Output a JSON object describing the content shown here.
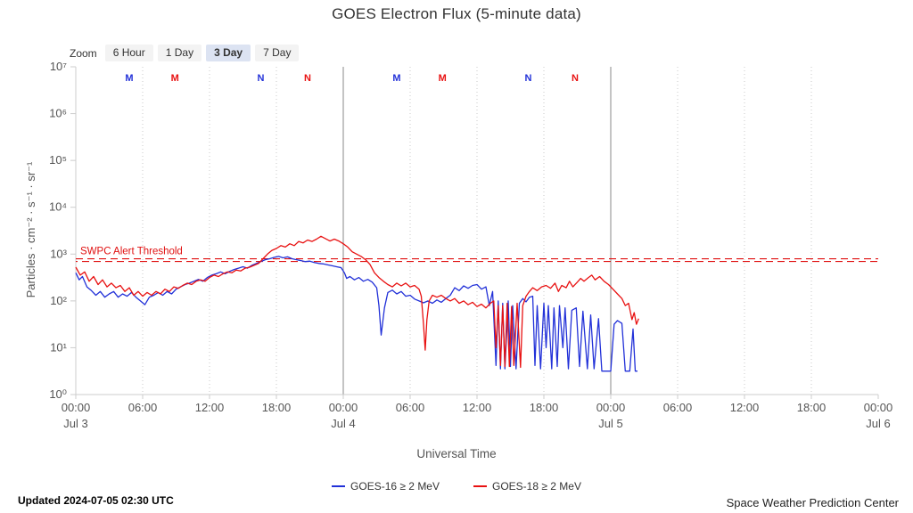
{
  "title": "GOES Electron Flux (5-minute data)",
  "zoom": {
    "label": "Zoom",
    "options": [
      {
        "label": "6 Hour",
        "selected": false
      },
      {
        "label": "1 Day",
        "selected": false
      },
      {
        "label": "3 Day",
        "selected": true
      },
      {
        "label": "7 Day",
        "selected": false
      }
    ]
  },
  "y_axis": {
    "title": "Particles · cm⁻² · s⁻¹ · sr⁻¹",
    "tick_labels": [
      "10⁰",
      "10¹",
      "10²",
      "10³",
      "10⁴",
      "10⁵",
      "10⁶",
      "10⁷"
    ]
  },
  "x_axis": {
    "title": "Universal Time",
    "time_labels": [
      "00:00",
      "06:00",
      "12:00",
      "18:00"
    ],
    "days": [
      {
        "hour": 0,
        "label": "Jul 3"
      },
      {
        "hour": 24,
        "label": "Jul 4"
      },
      {
        "hour": 48,
        "label": "Jul 5"
      },
      {
        "hour": 72,
        "label": "Jul 6"
      }
    ]
  },
  "threshold": {
    "label": "SWPC Alert Threshold",
    "color": "#e01010"
  },
  "markers": [
    {
      "label": "M",
      "satellite": "GOES-16",
      "color": "#2231d8",
      "hour": 4.8
    },
    {
      "label": "M",
      "satellite": "GOES-18",
      "color": "#e81111",
      "hour": 8.9
    },
    {
      "label": "N",
      "satellite": "GOES-16",
      "color": "#2231d8",
      "hour": 16.6
    },
    {
      "label": "N",
      "satellite": "GOES-18",
      "color": "#e81111",
      "hour": 20.8
    },
    {
      "label": "M",
      "satellite": "GOES-16",
      "color": "#2231d8",
      "hour": 28.8
    },
    {
      "label": "M",
      "satellite": "GOES-18",
      "color": "#e81111",
      "hour": 32.9
    },
    {
      "label": "N",
      "satellite": "GOES-16",
      "color": "#2231d8",
      "hour": 40.6
    },
    {
      "label": "N",
      "satellite": "GOES-18",
      "color": "#e81111",
      "hour": 44.8
    }
  ],
  "legend": [
    {
      "label": "GOES-16 ≥ 2 MeV",
      "color": "#2231d8"
    },
    {
      "label": "GOES-18 ≥ 2 MeV",
      "color": "#e81111"
    }
  ],
  "footer": {
    "updated": "Updated 2024-07-05 02:30 UTC",
    "source": "Space Weather Prediction Center"
  },
  "chart_data": {
    "type": "line",
    "title": "GOES Electron Flux (5-minute data)",
    "xlabel": "Universal Time",
    "ylabel": "Particles · cm⁻² · s⁻¹ · sr⁻¹",
    "x_unit": "hours since 2024-07-03 00:00 UTC",
    "y_unit": "log10 of particle flux",
    "x_range_hours": [
      0,
      72
    ],
    "y_log10_range": [
      0,
      7
    ],
    "grid": "vertical dotted every 6h, solid at day boundaries",
    "legend_position": "bottom-center",
    "threshold_log": 2.9,
    "series": [
      {
        "name": "GOES-16 ≥ 2 MeV",
        "color": "#2231d8",
        "points": [
          [
            0,
            2.6
          ],
          [
            0.3,
            2.45
          ],
          [
            0.6,
            2.52
          ],
          [
            1,
            2.3
          ],
          [
            1.4,
            2.22
          ],
          [
            1.8,
            2.12
          ],
          [
            2.2,
            2.2
          ],
          [
            2.6,
            2.08
          ],
          [
            3,
            2.15
          ],
          [
            3.4,
            2.2
          ],
          [
            3.8,
            2.08
          ],
          [
            4.2,
            2.15
          ],
          [
            4.6,
            2.1
          ],
          [
            5,
            2.18
          ],
          [
            5.4,
            2.08
          ],
          [
            5.8,
            2.0
          ],
          [
            6.2,
            1.92
          ],
          [
            6.6,
            2.08
          ],
          [
            7,
            2.12
          ],
          [
            7.4,
            2.18
          ],
          [
            7.8,
            2.12
          ],
          [
            8.2,
            2.2
          ],
          [
            8.6,
            2.15
          ],
          [
            9,
            2.25
          ],
          [
            9.4,
            2.3
          ],
          [
            9.8,
            2.35
          ],
          [
            10.2,
            2.38
          ],
          [
            10.6,
            2.42
          ],
          [
            11,
            2.46
          ],
          [
            11.4,
            2.42
          ],
          [
            11.8,
            2.5
          ],
          [
            12.2,
            2.55
          ],
          [
            12.6,
            2.58
          ],
          [
            13,
            2.62
          ],
          [
            13.4,
            2.58
          ],
          [
            13.8,
            2.63
          ],
          [
            14.2,
            2.67
          ],
          [
            14.6,
            2.7
          ],
          [
            15,
            2.73
          ],
          [
            15.4,
            2.7
          ],
          [
            15.8,
            2.76
          ],
          [
            16.2,
            2.8
          ],
          [
            16.6,
            2.84
          ],
          [
            17,
            2.88
          ],
          [
            17.4,
            2.9
          ],
          [
            17.8,
            2.93
          ],
          [
            18.2,
            2.95
          ],
          [
            18.6,
            2.92
          ],
          [
            19,
            2.94
          ],
          [
            19.4,
            2.9
          ],
          [
            19.8,
            2.88
          ],
          [
            20.2,
            2.86
          ],
          [
            20.6,
            2.84
          ],
          [
            21,
            2.85
          ],
          [
            21.4,
            2.82
          ],
          [
            21.8,
            2.8
          ],
          [
            22.2,
            2.79
          ],
          [
            22.6,
            2.77
          ],
          [
            23,
            2.75
          ],
          [
            23.4,
            2.73
          ],
          [
            23.8,
            2.71
          ],
          [
            24.1,
            2.6
          ],
          [
            24.3,
            2.48
          ],
          [
            24.6,
            2.52
          ],
          [
            25,
            2.45
          ],
          [
            25.4,
            2.5
          ],
          [
            25.8,
            2.42
          ],
          [
            26.2,
            2.46
          ],
          [
            26.6,
            2.4
          ],
          [
            27,
            2.28
          ],
          [
            27.2,
            1.9
          ],
          [
            27.4,
            1.27
          ],
          [
            27.7,
            1.85
          ],
          [
            28,
            2.18
          ],
          [
            28.4,
            2.23
          ],
          [
            28.8,
            2.15
          ],
          [
            29.2,
            2.2
          ],
          [
            29.6,
            2.1
          ],
          [
            30,
            2.12
          ],
          [
            30.4,
            2.04
          ],
          [
            30.8,
            2.0
          ],
          [
            31.2,
            1.96
          ],
          [
            31.6,
            2.0
          ],
          [
            32,
            1.95
          ],
          [
            32.4,
            2.02
          ],
          [
            32.8,
            1.97
          ],
          [
            33.2,
            2.05
          ],
          [
            33.6,
            2.12
          ],
          [
            34,
            2.28
          ],
          [
            34.4,
            2.22
          ],
          [
            34.8,
            2.32
          ],
          [
            35.2,
            2.27
          ],
          [
            35.6,
            2.33
          ],
          [
            36,
            2.35
          ],
          [
            36.4,
            2.25
          ],
          [
            36.8,
            2.3
          ],
          [
            37.1,
            1.9
          ],
          [
            37.4,
            2.2
          ],
          [
            37.7,
            0.62
          ],
          [
            37.9,
            2.0
          ],
          [
            38.1,
            0.55
          ],
          [
            38.3,
            1.95
          ],
          [
            38.5,
            0.55
          ],
          [
            38.8,
            2.0
          ],
          [
            39,
            0.6
          ],
          [
            39.2,
            1.9
          ],
          [
            39.5,
            0.55
          ],
          [
            39.8,
            1.95
          ],
          [
            40.1,
            2.05
          ],
          [
            40.4,
            1.98
          ],
          [
            40.7,
            2.08
          ],
          [
            41,
            2.1
          ],
          [
            41.2,
            0.62
          ],
          [
            41.4,
            1.9
          ],
          [
            41.7,
            0.55
          ],
          [
            42,
            1.95
          ],
          [
            42.2,
            1.0
          ],
          [
            42.4,
            1.9
          ],
          [
            42.7,
            0.55
          ],
          [
            42.9,
            1.85
          ],
          [
            43.2,
            0.6
          ],
          [
            43.4,
            1.9
          ],
          [
            43.7,
            1.0
          ],
          [
            43.9,
            1.85
          ],
          [
            44.2,
            0.55
          ],
          [
            44.5,
            1.8
          ],
          [
            44.9,
            1.85
          ],
          [
            45.2,
            0.6
          ],
          [
            45.5,
            1.78
          ],
          [
            45.9,
            0.55
          ],
          [
            46.2,
            1.7
          ],
          [
            46.5,
            0.55
          ],
          [
            46.9,
            1.62
          ],
          [
            47.2,
            0.5
          ],
          [
            47.6,
            0.5
          ],
          [
            48,
            0.5
          ],
          [
            48.3,
            1.5
          ],
          [
            48.6,
            1.58
          ],
          [
            49,
            1.52
          ],
          [
            49.3,
            0.5
          ],
          [
            49.7,
            0.5
          ],
          [
            50,
            1.4
          ],
          [
            50.2,
            0.5
          ],
          [
            50.4,
            0.5
          ]
        ]
      },
      {
        "name": "GOES-18 ≥ 2 MeV",
        "color": "#e81111",
        "points": [
          [
            0,
            2.72
          ],
          [
            0.4,
            2.55
          ],
          [
            0.8,
            2.62
          ],
          [
            1.2,
            2.42
          ],
          [
            1.6,
            2.52
          ],
          [
            2,
            2.35
          ],
          [
            2.4,
            2.45
          ],
          [
            2.8,
            2.3
          ],
          [
            3.2,
            2.38
          ],
          [
            3.6,
            2.28
          ],
          [
            4,
            2.33
          ],
          [
            4.4,
            2.2
          ],
          [
            4.8,
            2.28
          ],
          [
            5.2,
            2.12
          ],
          [
            5.6,
            2.2
          ],
          [
            6,
            2.1
          ],
          [
            6.4,
            2.18
          ],
          [
            6.8,
            2.12
          ],
          [
            7.2,
            2.2
          ],
          [
            7.6,
            2.15
          ],
          [
            8,
            2.25
          ],
          [
            8.4,
            2.2
          ],
          [
            8.8,
            2.3
          ],
          [
            9.2,
            2.27
          ],
          [
            9.6,
            2.33
          ],
          [
            10,
            2.38
          ],
          [
            10.4,
            2.35
          ],
          [
            10.8,
            2.42
          ],
          [
            11.2,
            2.45
          ],
          [
            11.6,
            2.42
          ],
          [
            12,
            2.5
          ],
          [
            12.4,
            2.55
          ],
          [
            12.8,
            2.52
          ],
          [
            13.2,
            2.58
          ],
          [
            13.6,
            2.62
          ],
          [
            14,
            2.6
          ],
          [
            14.4,
            2.66
          ],
          [
            14.8,
            2.64
          ],
          [
            15.2,
            2.7
          ],
          [
            15.6,
            2.72
          ],
          [
            16,
            2.76
          ],
          [
            16.4,
            2.8
          ],
          [
            16.8,
            2.9
          ],
          [
            17.2,
            3.0
          ],
          [
            17.6,
            3.08
          ],
          [
            18,
            3.12
          ],
          [
            18.4,
            3.18
          ],
          [
            18.8,
            3.15
          ],
          [
            19.2,
            3.22
          ],
          [
            19.6,
            3.18
          ],
          [
            20,
            3.27
          ],
          [
            20.4,
            3.24
          ],
          [
            20.8,
            3.3
          ],
          [
            21.2,
            3.27
          ],
          [
            21.6,
            3.32
          ],
          [
            22,
            3.38
          ],
          [
            22.4,
            3.33
          ],
          [
            22.8,
            3.28
          ],
          [
            23.2,
            3.32
          ],
          [
            23.6,
            3.28
          ],
          [
            24,
            3.22
          ],
          [
            24.4,
            3.15
          ],
          [
            24.8,
            3.05
          ],
          [
            25.2,
            3.0
          ],
          [
            25.6,
            2.95
          ],
          [
            26,
            2.88
          ],
          [
            26.4,
            2.78
          ],
          [
            26.8,
            2.6
          ],
          [
            27.2,
            2.5
          ],
          [
            27.6,
            2.42
          ],
          [
            28,
            2.35
          ],
          [
            28.4,
            2.3
          ],
          [
            28.8,
            2.38
          ],
          [
            29.2,
            2.32
          ],
          [
            29.6,
            2.38
          ],
          [
            30,
            2.3
          ],
          [
            30.4,
            2.33
          ],
          [
            30.8,
            2.25
          ],
          [
            31,
            2.1
          ],
          [
            31.2,
            1.5
          ],
          [
            31.35,
            0.95
          ],
          [
            31.5,
            1.6
          ],
          [
            31.7,
            2.0
          ],
          [
            32,
            2.12
          ],
          [
            32.4,
            2.08
          ],
          [
            32.8,
            2.12
          ],
          [
            33.2,
            2.05
          ],
          [
            33.6,
            2.0
          ],
          [
            34,
            2.05
          ],
          [
            34.4,
            1.95
          ],
          [
            34.8,
            2.0
          ],
          [
            35.2,
            1.92
          ],
          [
            35.6,
            1.97
          ],
          [
            36,
            1.88
          ],
          [
            36.4,
            1.93
          ],
          [
            36.8,
            1.85
          ],
          [
            37.2,
            1.95
          ],
          [
            37.5,
            2.0
          ],
          [
            37.7,
            1.0
          ],
          [
            37.9,
            1.9
          ],
          [
            38.1,
            0.62
          ],
          [
            38.3,
            1.9
          ],
          [
            38.5,
            0.6
          ],
          [
            38.7,
            1.95
          ],
          [
            38.9,
            0.6
          ],
          [
            39.1,
            1.88
          ],
          [
            39.3,
            0.62
          ],
          [
            39.6,
            1.95
          ],
          [
            39.9,
            0.58
          ],
          [
            40.1,
            1.9
          ],
          [
            40.4,
            2.1
          ],
          [
            40.7,
            2.2
          ],
          [
            41,
            2.28
          ],
          [
            41.4,
            2.22
          ],
          [
            41.8,
            2.3
          ],
          [
            42.2,
            2.33
          ],
          [
            42.6,
            2.27
          ],
          [
            43,
            2.38
          ],
          [
            43.3,
            2.2
          ],
          [
            43.6,
            2.33
          ],
          [
            44,
            2.28
          ],
          [
            44.3,
            2.42
          ],
          [
            44.6,
            2.3
          ],
          [
            45,
            2.4
          ],
          [
            45.3,
            2.48
          ],
          [
            45.6,
            2.42
          ],
          [
            46,
            2.5
          ],
          [
            46.3,
            2.55
          ],
          [
            46.6,
            2.45
          ],
          [
            47,
            2.52
          ],
          [
            47.4,
            2.42
          ],
          [
            47.8,
            2.35
          ],
          [
            48.2,
            2.25
          ],
          [
            48.6,
            2.15
          ],
          [
            49,
            2.05
          ],
          [
            49.3,
            1.9
          ],
          [
            49.6,
            1.95
          ],
          [
            49.9,
            1.6
          ],
          [
            50.1,
            1.75
          ],
          [
            50.3,
            1.5
          ],
          [
            50.5,
            1.62
          ]
        ]
      }
    ]
  }
}
